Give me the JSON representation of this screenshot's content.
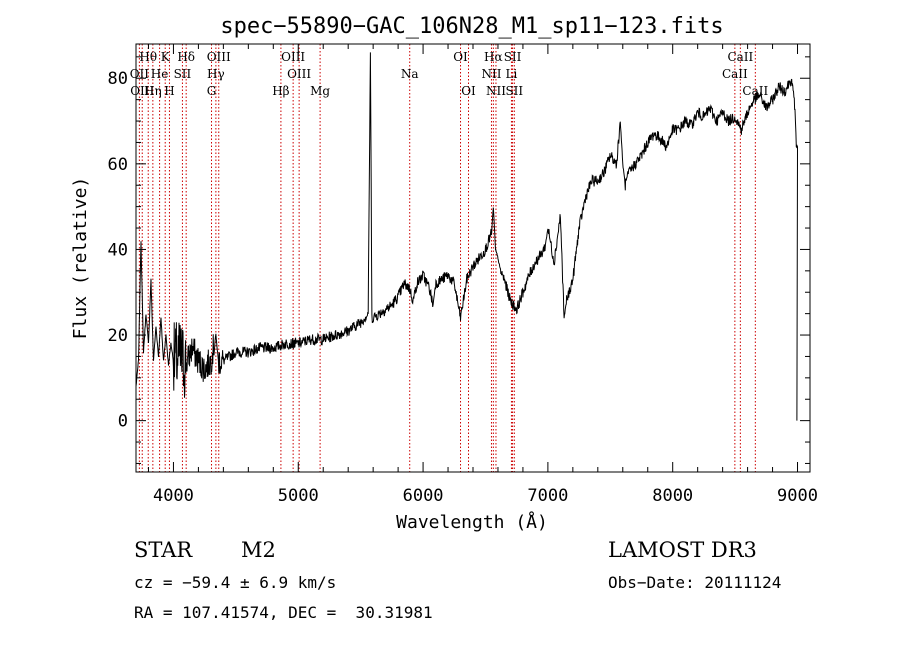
{
  "chart_data": {
    "type": "line",
    "title": "spec−55890−GAC_106N28_M1_sp11−123.fits",
    "xlabel": "Wavelength (Å)",
    "ylabel": "Flux (relative)",
    "xlim": [
      3700,
      9100
    ],
    "ylim": [
      -12,
      88
    ],
    "xticks": [
      4000,
      5000,
      6000,
      7000,
      8000,
      9000
    ],
    "yticks": [
      0,
      20,
      40,
      60,
      80
    ],
    "grid": false,
    "series": [
      {
        "name": "flux",
        "x": [
          3700,
          3720,
          3740,
          3760,
          3780,
          3800,
          3820,
          3840,
          3860,
          3880,
          3900,
          3920,
          3940,
          3960,
          3980,
          4000,
          4050,
          4100,
          4150,
          4200,
          4250,
          4300,
          4340,
          4360,
          4400,
          4450,
          4500,
          4600,
          4700,
          4800,
          4900,
          5000,
          5100,
          5200,
          5300,
          5400,
          5500,
          5560,
          5578,
          5590,
          5650,
          5700,
          5750,
          5800,
          5850,
          5890,
          5920,
          5950,
          6000,
          6050,
          6080,
          6100,
          6150,
          6200,
          6250,
          6300,
          6350,
          6400,
          6450,
          6500,
          6550,
          6563,
          6580,
          6600,
          6620,
          6650,
          6700,
          6750,
          6800,
          6850,
          6900,
          6950,
          6980,
          7000,
          7050,
          7100,
          7130,
          7150,
          7200,
          7250,
          7300,
          7350,
          7400,
          7450,
          7500,
          7550,
          7580,
          7600,
          7620,
          7650,
          7700,
          7750,
          7800,
          7850,
          7900,
          7950,
          8000,
          8050,
          8100,
          8150,
          8200,
          8250,
          8300,
          8350,
          8400,
          8450,
          8500,
          8550,
          8600,
          8650,
          8700,
          8750,
          8800,
          8850,
          8900,
          8950,
          8980,
          8990,
          9000
        ],
        "y": [
          8,
          14,
          42,
          16,
          25,
          18,
          33,
          14,
          22,
          15,
          24,
          14,
          20,
          13,
          18,
          14,
          15,
          13,
          17,
          14,
          12,
          14,
          20,
          14,
          14,
          15,
          16,
          16,
          17,
          17,
          18,
          18,
          19,
          19,
          20,
          21,
          23,
          25,
          86,
          24,
          25,
          26,
          27,
          29,
          32,
          31,
          28,
          32,
          34,
          31,
          27,
          32,
          33,
          34,
          32,
          24,
          33,
          36,
          38,
          40,
          44,
          50,
          40,
          38,
          35,
          33,
          28,
          26,
          30,
          34,
          37,
          39,
          41,
          45,
          37,
          48,
          24,
          28,
          33,
          45,
          52,
          56,
          56,
          58,
          62,
          60,
          70,
          60,
          55,
          58,
          60,
          62,
          65,
          67,
          66,
          64,
          68,
          68,
          70,
          69,
          72,
          71,
          73,
          70,
          72,
          70,
          71,
          68,
          72,
          75,
          76,
          73,
          75,
          78,
          77,
          80,
          73,
          64,
          64
        ]
      }
    ],
    "spectral_lines": [
      {
        "label": "Hθ",
        "wavelength": 3798,
        "row": 1
      },
      {
        "label": "K",
        "wavelength": 3934,
        "row": 1
      },
      {
        "label": "Hδ",
        "wavelength": 4102,
        "row": 1
      },
      {
        "label": "OIII",
        "wavelength": 4363,
        "row": 1
      },
      {
        "label": "OIII",
        "wavelength": 4959,
        "row": 1
      },
      {
        "label": "OI",
        "wavelength": 6300,
        "row": 1
      },
      {
        "label": "Hα",
        "wavelength": 6563,
        "row": 1
      },
      {
        "label": "SII",
        "wavelength": 6717,
        "row": 1
      },
      {
        "label": "CaII",
        "wavelength": 8542,
        "row": 1
      },
      {
        "label": "OII",
        "wavelength": 3727,
        "row": 2
      },
      {
        "label": "He",
        "wavelength": 3889,
        "row": 2
      },
      {
        "label": "SII",
        "wavelength": 4072,
        "row": 2
      },
      {
        "label": "Hγ",
        "wavelength": 4340,
        "row": 2
      },
      {
        "label": "OIII",
        "wavelength": 5007,
        "row": 2
      },
      {
        "label": "Na",
        "wavelength": 5893,
        "row": 2
      },
      {
        "label": "NII",
        "wavelength": 6548,
        "row": 2
      },
      {
        "label": "Li",
        "wavelength": 6708,
        "row": 2
      },
      {
        "label": "CaII",
        "wavelength": 8498,
        "row": 2
      },
      {
        "label": "OIII",
        "wavelength": 3750,
        "row": 3
      },
      {
        "label": "Hη",
        "wavelength": 3835,
        "row": 3
      },
      {
        "label": "H",
        "wavelength": 3968,
        "row": 3
      },
      {
        "label": "G",
        "wavelength": 4305,
        "row": 3
      },
      {
        "label": "Hβ",
        "wavelength": 4861,
        "row": 3
      },
      {
        "label": "Mg",
        "wavelength": 5175,
        "row": 3
      },
      {
        "label": "OI",
        "wavelength": 6364,
        "row": 3
      },
      {
        "label": "NII",
        "wavelength": 6584,
        "row": 3
      },
      {
        "label": "SII",
        "wavelength": 6731,
        "row": 3
      },
      {
        "label": "CaII",
        "wavelength": 8662,
        "row": 3
      }
    ]
  },
  "info": {
    "object_class": "STAR",
    "subclass": "M2",
    "survey": "LAMOST DR3",
    "redshift": "cz = −59.4 ± 6.9 km/s",
    "obs_date": "Obs−Date: 20111124",
    "coords": "RA = 107.41574, DEC =  30.31981"
  },
  "colors": {
    "spectrum": "#000000",
    "line_markers": "#cc0000",
    "axes": "#000000"
  }
}
